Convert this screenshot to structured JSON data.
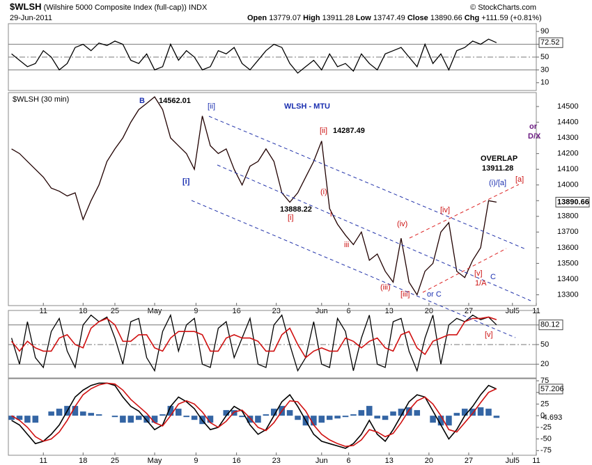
{
  "header": {
    "symbol": "$WLSH",
    "name": "(Wilshire 5000 Composite Index (full-cap))",
    "exchange": "INDX",
    "date": "29-Jun-2011",
    "copyright": "© StockCharts.com",
    "ohlc": [
      {
        "label": "Open",
        "value": 13779.07
      },
      {
        "label": "High",
        "value": 13911.28
      },
      {
        "label": "Low",
        "value": 13747.49
      },
      {
        "label": "Close",
        "value": 13890.66
      }
    ],
    "change_label": "Chg",
    "change": "+111.59 (+0.81%)"
  },
  "x_axis": {
    "xlim": [
      -4.4,
      62
    ],
    "xticks": [
      {
        "value": 0,
        "label": "11"
      },
      {
        "value": 5,
        "label": "18"
      },
      {
        "value": 9,
        "label": "25"
      },
      {
        "value": 14,
        "label": "May"
      },
      {
        "value": 19.2,
        "label": "9"
      },
      {
        "value": 24.3,
        "label": "16"
      },
      {
        "value": 29.3,
        "label": "23"
      },
      {
        "value": 35,
        "label": "Jun"
      },
      {
        "value": 38.4,
        "label": "6"
      },
      {
        "value": 43.5,
        "label": "13"
      },
      {
        "value": 48.5,
        "label": "20"
      },
      {
        "value": 53.5,
        "label": "27"
      },
      {
        "value": 59,
        "label": "Jul5"
      },
      {
        "value": 62,
        "label": "11"
      }
    ],
    "x": [
      -4,
      -3,
      -2,
      -1,
      0,
      1,
      2,
      3,
      4,
      5,
      6,
      7,
      8,
      9,
      10,
      11,
      12,
      13,
      14,
      15,
      16,
      17,
      18,
      19,
      20,
      21,
      22,
      23,
      24,
      25,
      26,
      27,
      28,
      29,
      30,
      31,
      32,
      33,
      34,
      35,
      36,
      37,
      38,
      39,
      40,
      41,
      42,
      43,
      44,
      45,
      46,
      47,
      48,
      49,
      50,
      51,
      52,
      53,
      54,
      55,
      56,
      57
    ]
  },
  "chart_data": [
    {
      "type": "line",
      "ylim": [
        0,
        100
      ],
      "yticks": [
        90,
        70,
        50,
        30,
        10
      ],
      "reference_lines": [
        70,
        50,
        30
      ],
      "series": [
        {
          "color": "#000000",
          "show_last": true,
          "values": [
            55,
            45,
            35,
            40,
            60,
            50,
            30,
            40,
            65,
            70,
            60,
            72,
            68,
            75,
            70,
            45,
            40,
            55,
            30,
            35,
            70,
            45,
            60,
            50,
            30,
            35,
            60,
            55,
            65,
            40,
            30,
            45,
            60,
            70,
            65,
            40,
            25,
            35,
            45,
            30,
            55,
            35,
            40,
            28,
            55,
            40,
            30,
            55,
            60,
            65,
            50,
            35,
            70,
            40,
            55,
            30,
            60,
            65,
            75,
            70,
            78,
            72.52
          ]
        }
      ]
    },
    {
      "type": "line",
      "title": "$WLSH (30 min)",
      "ylim": [
        13240,
        14580
      ],
      "yticks": [
        14500,
        14400,
        14300,
        14200,
        14100,
        14000,
        13900,
        13800,
        13700,
        13600,
        13500,
        13400,
        13300
      ],
      "series": [
        {
          "color": "#200000",
          "show_last": true,
          "values": [
            14230,
            14200,
            14150,
            14100,
            14050,
            13980,
            13960,
            13930,
            13950,
            13780,
            13900,
            14000,
            14150,
            14230,
            14300,
            14400,
            14480,
            14520,
            14562,
            14480,
            14300,
            14250,
            14200,
            14100,
            14440,
            14250,
            14200,
            14230,
            14100,
            14000,
            14120,
            14150,
            14230,
            14150,
            13950,
            13890,
            13950,
            14050,
            14150,
            14280,
            13850,
            13750,
            13680,
            13620,
            13700,
            13520,
            13560,
            13450,
            13380,
            13660,
            13380,
            13300,
            13450,
            13500,
            13700,
            13760,
            13450,
            13410,
            13520,
            13600,
            13900,
            13890.66
          ]
        }
      ],
      "annotations": [
        "B",
        "14562.01",
        "[ii]",
        "WLSH - MTU",
        "[ii]",
        "14287.49",
        "or",
        "D/X",
        "[i]",
        "OVERLAP",
        "13911.28",
        "(i)/[a]",
        "[a]",
        "(i)",
        "13888.22",
        "[i]",
        "i",
        "[iv]",
        "(iv)",
        "iii",
        "[v]",
        "1/A",
        "C",
        "(iii)",
        "[iii]",
        "or C"
      ]
    },
    {
      "type": "line",
      "ylim": [
        0,
        100
      ],
      "yticks": [
        80,
        50,
        20
      ],
      "reference_lines": [
        80,
        50,
        20
      ],
      "annotations": [
        "[v]"
      ],
      "series": [
        {
          "color": "#000000",
          "show_last": true,
          "values": [
            60,
            20,
            85,
            30,
            15,
            70,
            90,
            40,
            15,
            80,
            95,
            85,
            92,
            60,
            20,
            85,
            90,
            30,
            10,
            70,
            95,
            40,
            80,
            90,
            20,
            15,
            75,
            85,
            30,
            60,
            90,
            20,
            15,
            80,
            95,
            50,
            10,
            30,
            85,
            20,
            15,
            90,
            70,
            10,
            60,
            95,
            20,
            15,
            85,
            90,
            40,
            10,
            60,
            95,
            20,
            80,
            90,
            85,
            95,
            88,
            92,
            80.12
          ]
        },
        {
          "color": "#d01010",
          "values": [
            55,
            40,
            55,
            45,
            40,
            40,
            60,
            65,
            50,
            45,
            75,
            85,
            90,
            80,
            55,
            55,
            65,
            65,
            45,
            40,
            60,
            70,
            70,
            70,
            65,
            40,
            40,
            60,
            65,
            60,
            60,
            55,
            40,
            40,
            65,
            75,
            50,
            30,
            40,
            45,
            40,
            40,
            60,
            55,
            45,
            55,
            60,
            45,
            40,
            65,
            70,
            45,
            35,
            55,
            60,
            65,
            65,
            85,
            90,
            90,
            92,
            88
          ]
        }
      ]
    },
    {
      "type": "line",
      "ylim": [
        -82,
        78
      ],
      "yticks": [
        75,
        50,
        25,
        0,
        -25,
        -50,
        -75
      ],
      "series": [
        {
          "color": "#3465a4",
          "style": "histogram",
          "show_last": true,
          "values": [
            -9,
            -9,
            -15,
            -15,
            0,
            9,
            15,
            21,
            21,
            9,
            6,
            3,
            0,
            -3,
            -15,
            -15,
            -9,
            -15,
            -15,
            3,
            21,
            15,
            -3,
            -9,
            -18,
            -15,
            0,
            12,
            12,
            -3,
            -15,
            -15,
            3,
            15,
            21,
            12,
            -9,
            -21,
            -21,
            -15,
            -9,
            -6,
            -3,
            3,
            12,
            21,
            -6,
            -9,
            9,
            15,
            18,
            12,
            0,
            -15,
            -21,
            -21,
            6,
            15,
            15,
            18,
            15,
            -4.693
          ]
        },
        {
          "color": "#000000",
          "show_last": true,
          "values": [
            -10,
            -20,
            -40,
            -60,
            -55,
            -40,
            -20,
            10,
            40,
            55,
            65,
            70,
            70,
            65,
            40,
            20,
            10,
            -10,
            -30,
            -20,
            20,
            40,
            30,
            15,
            -10,
            -30,
            -25,
            0,
            20,
            10,
            -20,
            -40,
            -30,
            0,
            30,
            45,
            20,
            -10,
            -40,
            -55,
            -60,
            -65,
            -70,
            -60,
            -40,
            -10,
            -40,
            -55,
            -30,
            0,
            30,
            45,
            40,
            10,
            -20,
            -50,
            -30,
            0,
            20,
            45,
            65,
            57.206
          ]
        },
        {
          "color": "#d01010",
          "values": [
            0,
            -10,
            -25,
            -45,
            -55,
            -50,
            -35,
            -10,
            20,
            45,
            58,
            66,
            70,
            68,
            55,
            35,
            20,
            5,
            -15,
            -22,
            0,
            25,
            32,
            25,
            8,
            -15,
            -25,
            -12,
            8,
            12,
            -5,
            -25,
            -32,
            -15,
            10,
            32,
            30,
            10,
            -20,
            -40,
            -52,
            -60,
            -66,
            -64,
            -52,
            -30,
            -35,
            -45,
            -38,
            -15,
            12,
            32,
            40,
            25,
            0,
            -30,
            -35,
            -15,
            5,
            28,
            50,
            58
          ]
        }
      ]
    }
  ]
}
